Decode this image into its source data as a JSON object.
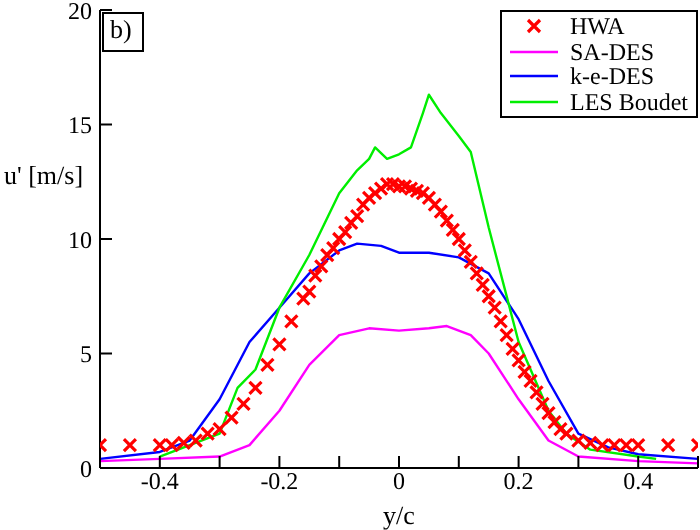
{
  "chart_data": {
    "type": "line",
    "xlabel": "y/c",
    "ylabel": "u' [m/s]",
    "annotations": [
      "b)"
    ],
    "xlim": [
      -0.5,
      0.5
    ],
    "ylim": [
      0,
      20
    ],
    "xticks": [
      {
        "value": -0.5,
        "label": null
      },
      -0.4,
      {
        "value": -0.3,
        "label": null
      },
      -0.2,
      {
        "value": -0.1,
        "label": null
      },
      0,
      {
        "value": 0.1,
        "label": null
      },
      0.2,
      {
        "value": 0.3,
        "label": null
      },
      0.4,
      {
        "value": 0.5,
        "label": null
      }
    ],
    "yticks": [
      0,
      5,
      10,
      15,
      20
    ],
    "legend": "top right",
    "line_style": "solid",
    "series": [
      {
        "name": "HWA",
        "type": "scatter",
        "marker": "cross",
        "color": "#ff0000",
        "x": [
          -0.5,
          -0.45,
          -0.4,
          -0.38,
          -0.36,
          -0.34,
          -0.32,
          -0.3,
          -0.28,
          -0.26,
          -0.24,
          -0.22,
          -0.2,
          -0.18,
          -0.16,
          -0.15,
          -0.14,
          -0.13,
          -0.12,
          -0.11,
          -0.1,
          -0.09,
          -0.08,
          -0.07,
          -0.06,
          -0.05,
          -0.04,
          -0.03,
          -0.02,
          -0.01,
          0,
          0.01,
          0.02,
          0.03,
          0.04,
          0.05,
          0.06,
          0.07,
          0.08,
          0.09,
          0.1,
          0.11,
          0.12,
          0.13,
          0.14,
          0.15,
          0.16,
          0.17,
          0.18,
          0.19,
          0.2,
          0.21,
          0.22,
          0.23,
          0.24,
          0.25,
          0.26,
          0.27,
          0.28,
          0.3,
          0.32,
          0.34,
          0.36,
          0.38,
          0.4,
          0.45,
          0.5
        ],
        "values": [
          1,
          1,
          1,
          1,
          1.1,
          1.2,
          1.5,
          1.7,
          2.2,
          2.8,
          3.5,
          4.5,
          5.4,
          6.4,
          7.4,
          7.7,
          8.4,
          8.8,
          9.3,
          9.6,
          10,
          10.3,
          10.7,
          11,
          11.5,
          11.8,
          12,
          12.2,
          12.4,
          12.4,
          12.3,
          12.3,
          12.2,
          12.1,
          12,
          11.8,
          11.5,
          11.2,
          10.8,
          10.4,
          10,
          9.5,
          9,
          8.5,
          8,
          7.5,
          7,
          6.4,
          5.8,
          5.2,
          4.7,
          4.2,
          3.8,
          3.3,
          2.8,
          2.4,
          2,
          1.7,
          1.5,
          1.2,
          1.1,
          1,
          1,
          1,
          1,
          1,
          1
        ]
      },
      {
        "name": "SA-DES",
        "color": "#ff00ff",
        "x": [
          -0.5,
          -0.4,
          -0.3,
          -0.25,
          -0.2,
          -0.15,
          -0.1,
          -0.05,
          0,
          0.05,
          0.08,
          0.12,
          0.15,
          0.2,
          0.25,
          0.3,
          0.4,
          0.5
        ],
        "values": [
          0.3,
          0.4,
          0.5,
          1,
          2.5,
          4.5,
          5.8,
          6.1,
          6,
          6.1,
          6.2,
          5.8,
          5,
          3,
          1.2,
          0.5,
          0.3,
          0.2
        ]
      },
      {
        "name": "k-e-DES",
        "color": "#0000ff",
        "x": [
          -0.5,
          -0.4,
          -0.35,
          -0.3,
          -0.25,
          -0.2,
          -0.15,
          -0.1,
          -0.07,
          -0.03,
          0,
          0.05,
          0.1,
          0.15,
          0.2,
          0.25,
          0.3,
          0.35,
          0.4,
          0.5
        ],
        "values": [
          0.4,
          0.7,
          1.2,
          3,
          5.5,
          7,
          8.5,
          9.5,
          9.8,
          9.7,
          9.4,
          9.4,
          9.2,
          8.5,
          6.5,
          3.8,
          1.5,
          0.9,
          0.6,
          0.4
        ]
      },
      {
        "name": "LES Boudet",
        "color": "#00ee00",
        "x": [
          -0.4,
          -0.35,
          -0.3,
          -0.27,
          -0.24,
          -0.2,
          -0.15,
          -0.1,
          -0.07,
          -0.05,
          -0.04,
          -0.02,
          0,
          0.02,
          0.04,
          0.05,
          0.07,
          0.1,
          0.12,
          0.15,
          0.2,
          0.25,
          0.28,
          0.32,
          0.4,
          0.43
        ],
        "values": [
          0.5,
          1,
          1.5,
          3.5,
          4.3,
          7,
          9.3,
          12,
          13,
          13.5,
          14,
          13.5,
          13.7,
          14,
          15.5,
          16.3,
          15.5,
          14.5,
          13.8,
          10.5,
          5.5,
          2.5,
          1.5,
          0.8,
          0.5,
          0.4
        ]
      }
    ]
  }
}
